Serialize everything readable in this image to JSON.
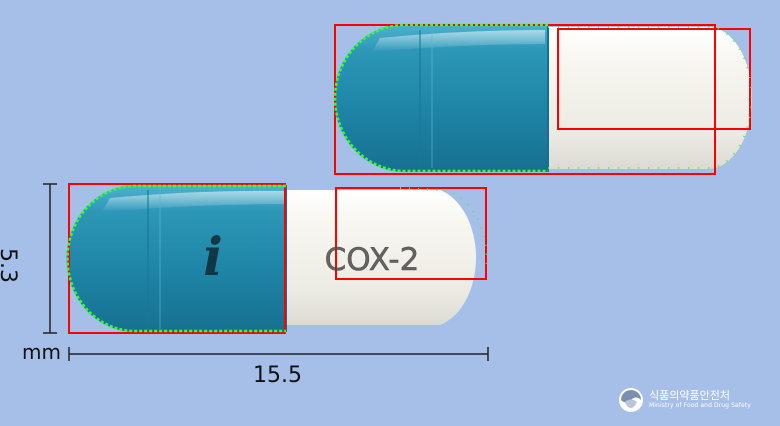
{
  "specimen": {
    "imprint_logo": "i",
    "imprint_text": "COX-2",
    "cap_color": "#2b8fb0",
    "body_color": "#f2f1ea",
    "background_color": "#a6bfe8",
    "annotation_box_color": "#ff0000",
    "contour_color": "#33ff33"
  },
  "dimensions": {
    "height_value": "5.3",
    "width_value": "15.5",
    "unit": "mm"
  },
  "watermark": {
    "korean": "식품의약품안전처",
    "english": "Ministry of Food and Drug Safety",
    "icon": "mfds-logo-icon"
  }
}
